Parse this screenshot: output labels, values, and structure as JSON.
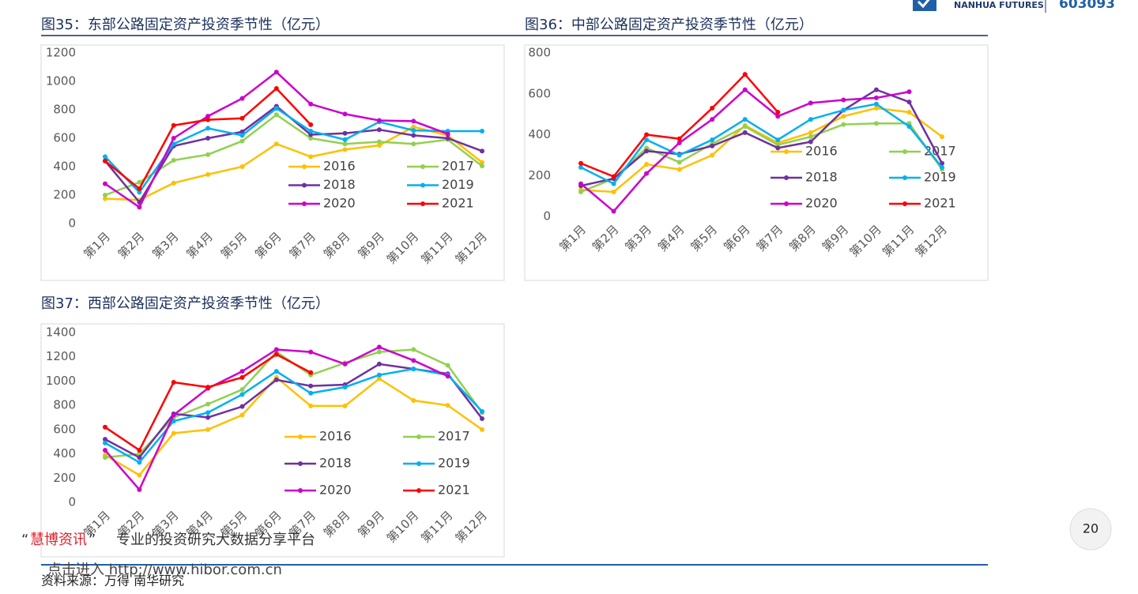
{
  "header": {
    "logo_text": "NANHUA FUTURES",
    "code": "603093"
  },
  "chart_data": [
    {
      "type": "line",
      "title": "图35：东部公路固定资产投资季节性（亿元）",
      "categories": [
        "第1月",
        "第2月",
        "第3月",
        "第4月",
        "第5月",
        "第6月",
        "第7月",
        "第8月",
        "第9月",
        "第10月",
        "第11月",
        "第12月"
      ],
      "ylim": [
        0,
        1200
      ],
      "yticks": [
        0,
        200,
        400,
        600,
        800,
        1000,
        1200
      ],
      "series": [
        {
          "name": "2016",
          "color": "#ffc000",
          "values": [
            175,
            165,
            285,
            345,
            400,
            560,
            470,
            520,
            550,
            680,
            620,
            430
          ]
        },
        {
          "name": "2017",
          "color": "#92d050",
          "values": [
            200,
            290,
            445,
            485,
            580,
            765,
            600,
            560,
            575,
            560,
            590,
            405
          ]
        },
        {
          "name": "2018",
          "color": "#7030a0",
          "values": [
            440,
            150,
            545,
            600,
            645,
            825,
            625,
            635,
            660,
            620,
            600,
            510
          ]
        },
        {
          "name": "2019",
          "color": "#00b0f0",
          "values": [
            470,
            220,
            560,
            670,
            620,
            810,
            650,
            590,
            715,
            655,
            650,
            650
          ]
        },
        {
          "name": "2020",
          "color": "#cc00cc",
          "values": [
            280,
            115,
            600,
            755,
            880,
            1065,
            840,
            770,
            725,
            720,
            630,
            null
          ]
        },
        {
          "name": "2021",
          "color": "#ff0000",
          "values": [
            440,
            245,
            690,
            730,
            740,
            950,
            695,
            null,
            null,
            null,
            null,
            null
          ]
        }
      ]
    },
    {
      "type": "line",
      "title": "图36：中部公路固定资产投资季节性（亿元）",
      "categories": [
        "第1月",
        "第2月",
        "第3月",
        "第4月",
        "第5月",
        "第6月",
        "第7月",
        "第8月",
        "第9月",
        "第10月",
        "第11月",
        "第12月"
      ],
      "ylim": [
        0,
        800
      ],
      "yticks": [
        0,
        200,
        400,
        600,
        800
      ],
      "series": [
        {
          "name": "2016",
          "color": "#ffc000",
          "values": [
            130,
            120,
            255,
            230,
            300,
            445,
            360,
            410,
            490,
            530,
            510,
            390
          ]
        },
        {
          "name": "2017",
          "color": "#92d050",
          "values": [
            120,
            185,
            335,
            265,
            355,
            440,
            350,
            390,
            450,
            455,
            455,
            230
          ]
        },
        {
          "name": "2018",
          "color": "#7030a0",
          "values": [
            150,
            185,
            320,
            305,
            345,
            410,
            335,
            365,
            520,
            620,
            560,
            260
          ]
        },
        {
          "name": "2019",
          "color": "#00b0f0",
          "values": [
            240,
            160,
            375,
            300,
            375,
            475,
            375,
            475,
            520,
            550,
            440,
            240
          ]
        },
        {
          "name": "2020",
          "color": "#cc00cc",
          "values": [
            160,
            25,
            210,
            360,
            475,
            620,
            490,
            555,
            570,
            580,
            610,
            null
          ]
        },
        {
          "name": "2021",
          "color": "#ff0000",
          "values": [
            260,
            195,
            400,
            380,
            530,
            695,
            510,
            null,
            null,
            null,
            null,
            null
          ]
        }
      ]
    },
    {
      "type": "line",
      "title": "图37：西部公路固定资产投资季节性（亿元）",
      "categories": [
        "第1月",
        "第2月",
        "第3月",
        "第4月",
        "第5月",
        "第6月",
        "第7月",
        "第8月",
        "第9月",
        "第10月",
        "第11月",
        "第12月"
      ],
      "ylim": [
        0,
        1400
      ],
      "yticks": [
        0,
        200,
        400,
        600,
        800,
        1000,
        1200,
        1400
      ],
      "series": [
        {
          "name": "2016",
          "color": "#ffc000",
          "values": [
            390,
            225,
            570,
            600,
            720,
            1030,
            795,
            795,
            1020,
            840,
            800,
            600
          ]
        },
        {
          "name": "2017",
          "color": "#92d050",
          "values": [
            370,
            400,
            700,
            810,
            930,
            1240,
            1050,
            1150,
            1240,
            1260,
            1130,
            740
          ]
        },
        {
          "name": "2018",
          "color": "#7030a0",
          "values": [
            520,
            370,
            730,
            700,
            790,
            1010,
            960,
            970,
            1140,
            1100,
            1060,
            690
          ]
        },
        {
          "name": "2019",
          "color": "#00b0f0",
          "values": [
            490,
            330,
            670,
            740,
            890,
            1080,
            900,
            950,
            1050,
            1100,
            1050,
            750
          ]
        },
        {
          "name": "2020",
          "color": "#cc00cc",
          "values": [
            430,
            105,
            720,
            940,
            1080,
            1260,
            1240,
            1140,
            1280,
            1170,
            1040,
            null
          ]
        },
        {
          "name": "2021",
          "color": "#ff0000",
          "values": [
            620,
            430,
            990,
            950,
            1030,
            1220,
            1070,
            null,
            null,
            null,
            null,
            null
          ]
        }
      ]
    }
  ],
  "watermark": {
    "quote_open": "“",
    "brand": "慧博资讯",
    "quote_close": "”",
    "text": "专业的投资研究大数据分享平台",
    "link": "点击进入 http://www.hibor.com.cn"
  },
  "source": "资料来源：万得 南华研究",
  "page_number": "20"
}
